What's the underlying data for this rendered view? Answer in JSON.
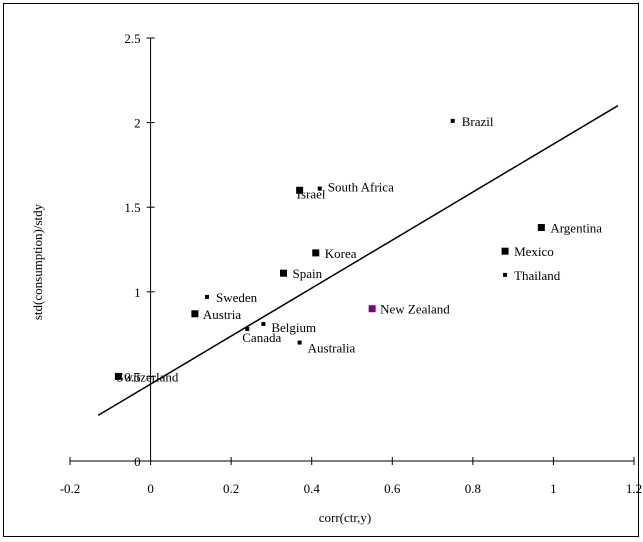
{
  "chart_data": {
    "type": "scatter",
    "title": "",
    "xlabel": "corr(ctr,y)",
    "ylabel": "std(consumption)/stdy",
    "xlim": [
      -0.2,
      1.2
    ],
    "ylim": [
      0,
      2.5
    ],
    "x_ticks": [
      -0.2,
      0,
      0.2,
      0.4,
      0.6,
      0.8,
      1,
      1.2
    ],
    "x_tick_labels": [
      "-0.2",
      "0",
      "0.2",
      "0.4",
      "0.6",
      "0.8",
      "1",
      "1.2"
    ],
    "y_ticks": [
      0,
      0.5,
      1,
      1.5,
      2,
      2.5
    ],
    "y_tick_labels": [
      "0",
      "0.5",
      "1",
      "1.5",
      "2",
      "2.5"
    ],
    "grid": false,
    "legend": false,
    "points": [
      {
        "label": "Brazil",
        "x": 0.75,
        "y": 2.01
      },
      {
        "label": "South Africa",
        "x": 0.42,
        "y": 1.61
      },
      {
        "label": "Israel",
        "x": 0.37,
        "y": 1.6
      },
      {
        "label": "Argentina",
        "x": 0.97,
        "y": 1.38
      },
      {
        "label": "Mexico",
        "x": 0.88,
        "y": 1.24
      },
      {
        "label": "Korea",
        "x": 0.41,
        "y": 1.23
      },
      {
        "label": "Spain",
        "x": 0.33,
        "y": 1.11
      },
      {
        "label": "Thailand",
        "x": 0.88,
        "y": 1.1
      },
      {
        "label": "Sweden",
        "x": 0.14,
        "y": 0.97
      },
      {
        "label": "New Zealand",
        "x": 0.55,
        "y": 0.9
      },
      {
        "label": "Austria",
        "x": 0.11,
        "y": 0.87
      },
      {
        "label": "Belgium",
        "x": 0.28,
        "y": 0.81
      },
      {
        "label": "Canada",
        "x": 0.24,
        "y": 0.78
      },
      {
        "label": "Australia",
        "x": 0.37,
        "y": 0.7
      },
      {
        "label": "Switzerland",
        "x": -0.08,
        "y": 0.5
      }
    ],
    "trend_line": {
      "x": [
        -0.13,
        1.16
      ],
      "y": [
        0.27,
        2.1
      ]
    },
    "colors": {
      "marker": "#000000",
      "highlight_marker": "#800080",
      "line": "#000000"
    }
  }
}
